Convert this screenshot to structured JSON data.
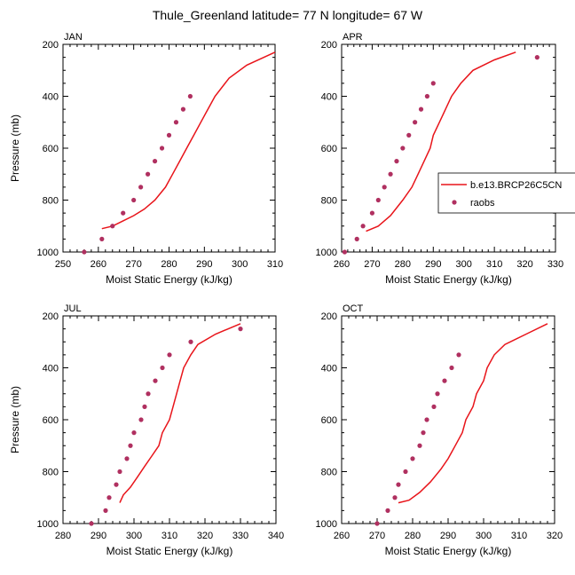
{
  "title": "Thule_Greenland  latitude= 77 N longitude= 67 W",
  "colors": {
    "model": "#e8141a",
    "obs": "#b03060",
    "axis": "#000000"
  },
  "legend": {
    "model_label": "b.e13.BRCP26C5CN",
    "obs_label": "raobs"
  },
  "chart_data": [
    {
      "type": "line",
      "panel": "JAN",
      "xlabel": "Moist Static Energy (kJ/kg)",
      "ylabel": "Pressure (mb)",
      "xlim": [
        250,
        310
      ],
      "xticks": [
        250,
        260,
        270,
        280,
        290,
        300,
        310
      ],
      "ylim": [
        1000,
        200
      ],
      "yticks": [
        200,
        400,
        600,
        800,
        1000
      ],
      "series": [
        {
          "name": "b.e13.BRCP26C5CN",
          "kind": "line",
          "points": [
            [
              261,
              910
            ],
            [
              264,
              900
            ],
            [
              267,
              880
            ],
            [
              270,
              860
            ],
            [
              273,
              835
            ],
            [
              276,
              800
            ],
            [
              279,
              750
            ],
            [
              281,
              700
            ],
            [
              283,
              650
            ],
            [
              285,
              600
            ],
            [
              287,
              550
            ],
            [
              289,
              500
            ],
            [
              291,
              450
            ],
            [
              293,
              400
            ],
            [
              297,
              330
            ],
            [
              302,
              280
            ],
            [
              310,
              230
            ]
          ]
        },
        {
          "name": "raobs",
          "kind": "scatter",
          "points": [
            [
              256,
              1000
            ],
            [
              261,
              950
            ],
            [
              264,
              900
            ],
            [
              267,
              850
            ],
            [
              270,
              800
            ],
            [
              272,
              750
            ],
            [
              274,
              700
            ],
            [
              276,
              650
            ],
            [
              278,
              600
            ],
            [
              280,
              550
            ],
            [
              282,
              500
            ],
            [
              284,
              450
            ],
            [
              286,
              400
            ]
          ]
        }
      ]
    },
    {
      "type": "line",
      "panel": "APR",
      "xlabel": "Moist Static Energy (kJ/kg)",
      "ylabel": "",
      "xlim": [
        260,
        330
      ],
      "xticks": [
        260,
        270,
        280,
        290,
        300,
        310,
        320,
        330
      ],
      "ylim": [
        1000,
        200
      ],
      "yticks": [
        200,
        400,
        600,
        800,
        1000
      ],
      "series": [
        {
          "name": "b.e13.BRCP26C5CN",
          "kind": "line",
          "points": [
            [
              268,
              920
            ],
            [
              272,
              900
            ],
            [
              276,
              860
            ],
            [
              280,
              800
            ],
            [
              283,
              750
            ],
            [
              285,
              700
            ],
            [
              287,
              650
            ],
            [
              289,
              600
            ],
            [
              290,
              550
            ],
            [
              292,
              500
            ],
            [
              294,
              450
            ],
            [
              296,
              400
            ],
            [
              299,
              350
            ],
            [
              303,
              300
            ],
            [
              310,
              260
            ],
            [
              317,
              230
            ]
          ]
        },
        {
          "name": "raobs",
          "kind": "scatter",
          "points": [
            [
              261,
              1000
            ],
            [
              265,
              950
            ],
            [
              267,
              900
            ],
            [
              270,
              850
            ],
            [
              272,
              800
            ],
            [
              274,
              750
            ],
            [
              276,
              700
            ],
            [
              278,
              650
            ],
            [
              280,
              600
            ],
            [
              282,
              550
            ],
            [
              284,
              500
            ],
            [
              286,
              450
            ],
            [
              288,
              400
            ],
            [
              290,
              350
            ],
            [
              324,
              250
            ]
          ]
        }
      ]
    },
    {
      "type": "line",
      "panel": "JUL",
      "xlabel": "Moist Static Energy (kJ/kg)",
      "ylabel": "Pressure (mb)",
      "xlim": [
        280,
        340
      ],
      "xticks": [
        280,
        290,
        300,
        310,
        320,
        330,
        340
      ],
      "ylim": [
        1000,
        200
      ],
      "yticks": [
        200,
        400,
        600,
        800,
        1000
      ],
      "series": [
        {
          "name": "b.e13.BRCP26C5CN",
          "kind": "line",
          "points": [
            [
              296,
              920
            ],
            [
              297,
              890
            ],
            [
              299,
              860
            ],
            [
              301,
              820
            ],
            [
              303,
              780
            ],
            [
              305,
              740
            ],
            [
              307,
              700
            ],
            [
              308,
              650
            ],
            [
              310,
              600
            ],
            [
              311,
              550
            ],
            [
              312,
              500
            ],
            [
              313,
              450
            ],
            [
              314,
              400
            ],
            [
              316,
              350
            ],
            [
              318,
              310
            ],
            [
              323,
              270
            ],
            [
              330,
              230
            ]
          ]
        },
        {
          "name": "raobs",
          "kind": "scatter",
          "points": [
            [
              288,
              1000
            ],
            [
              292,
              950
            ],
            [
              293,
              900
            ],
            [
              295,
              850
            ],
            [
              296,
              800
            ],
            [
              298,
              750
            ],
            [
              299,
              700
            ],
            [
              300,
              650
            ],
            [
              302,
              600
            ],
            [
              303,
              550
            ],
            [
              304,
              500
            ],
            [
              306,
              450
            ],
            [
              308,
              400
            ],
            [
              310,
              350
            ],
            [
              316,
              300
            ],
            [
              330,
              250
            ]
          ]
        }
      ]
    },
    {
      "type": "line",
      "panel": "OCT",
      "xlabel": "Moist Static Energy (kJ/kg)",
      "ylabel": "",
      "xlim": [
        260,
        320
      ],
      "xticks": [
        260,
        270,
        280,
        290,
        300,
        310,
        320
      ],
      "ylim": [
        1000,
        200
      ],
      "yticks": [
        200,
        400,
        600,
        800,
        1000
      ],
      "series": [
        {
          "name": "b.e13.BRCP26C5CN",
          "kind": "line",
          "points": [
            [
              276,
              920
            ],
            [
              279,
              910
            ],
            [
              282,
              880
            ],
            [
              285,
              840
            ],
            [
              288,
              790
            ],
            [
              290,
              750
            ],
            [
              292,
              700
            ],
            [
              294,
              650
            ],
            [
              295,
              600
            ],
            [
              297,
              550
            ],
            [
              298,
              500
            ],
            [
              300,
              450
            ],
            [
              301,
              400
            ],
            [
              303,
              350
            ],
            [
              306,
              310
            ],
            [
              312,
              270
            ],
            [
              318,
              230
            ]
          ]
        },
        {
          "name": "raobs",
          "kind": "scatter",
          "points": [
            [
              270,
              1000
            ],
            [
              273,
              950
            ],
            [
              275,
              900
            ],
            [
              276,
              850
            ],
            [
              278,
              800
            ],
            [
              280,
              750
            ],
            [
              282,
              700
            ],
            [
              283,
              650
            ],
            [
              284,
              600
            ],
            [
              286,
              550
            ],
            [
              287,
              500
            ],
            [
              289,
              450
            ],
            [
              291,
              400
            ],
            [
              293,
              350
            ]
          ]
        }
      ]
    }
  ]
}
